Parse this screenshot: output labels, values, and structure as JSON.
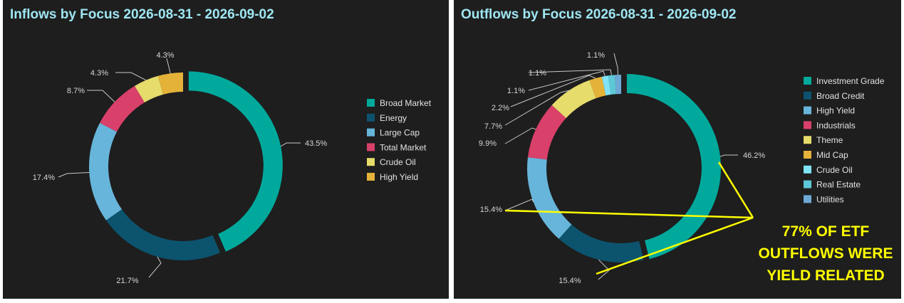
{
  "colors": {
    "background": "#1e1e1e",
    "title": "#9ee6f2",
    "annotation": "#ffff00"
  },
  "chart_data": [
    {
      "type": "pie",
      "donut": true,
      "title": "Inflows by Focus 2026-08-31 - 2026-09-02",
      "legend_position": "right",
      "categories": [
        "Broad Market",
        "Energy",
        "Large Cap",
        "Total Market",
        "Crude Oil",
        "High Yield"
      ],
      "values": [
        43.5,
        21.7,
        17.4,
        8.7,
        4.3,
        4.3
      ],
      "labels": [
        "43.5%",
        "21.7%",
        "17.4%",
        "8.7%",
        "4.3%",
        "4.3%"
      ],
      "colors": [
        "#01a99c",
        "#0c536e",
        "#67b5da",
        "#d9406a",
        "#e5dc6b",
        "#e5b239"
      ]
    },
    {
      "type": "pie",
      "donut": true,
      "title": "Outflows by Focus 2026-08-31 - 2026-09-02",
      "legend_position": "right",
      "categories": [
        "Investment Grade",
        "Broad Credit",
        "High Yield",
        "Industrials",
        "Theme",
        "Mid Cap",
        "Crude Oil",
        "Real Estate",
        "Utilities"
      ],
      "values": [
        46.2,
        15.4,
        15.4,
        9.9,
        7.7,
        2.2,
        1.1,
        1.1,
        1.1
      ],
      "labels": [
        "46.2%",
        "15.4%",
        "15.4%",
        "9.9%",
        "7.7%",
        "2.2%",
        "1.1%",
        "1.1%",
        "1.1%"
      ],
      "colors": [
        "#01a99c",
        "#0c536e",
        "#67b5da",
        "#d9406a",
        "#e5dc6b",
        "#e5b239",
        "#7fe3f5",
        "#5ec9d6",
        "#6ea9d6"
      ],
      "annotation": [
        "77% OF ETF",
        "OUTFLOWS WERE",
        "YIELD RELATED"
      ]
    }
  ]
}
